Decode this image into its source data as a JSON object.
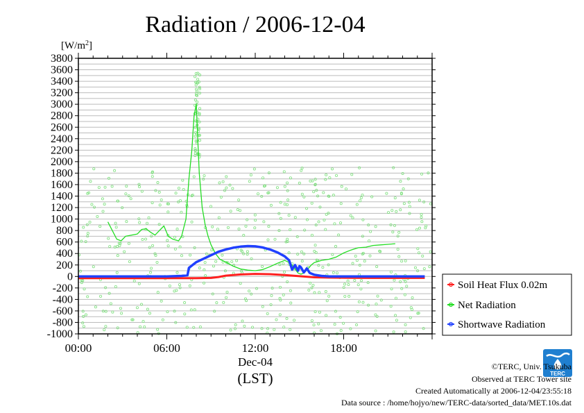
{
  "chart_data": {
    "type": "line",
    "title": "Radiation / 2006-12-04",
    "ylabel": "[W/m",
    "ylabel_sup": "2",
    "ylabel_close": "]",
    "xlabel": "Dec-04",
    "xlabel_sub": "(LST)",
    "ylim": [
      -1000,
      3800
    ],
    "xlim": [
      0,
      24
    ],
    "y_ticks": [
      3800,
      3600,
      3400,
      3200,
      3000,
      2800,
      2600,
      2400,
      2200,
      2000,
      1800,
      1600,
      1400,
      1200,
      1000,
      800,
      600,
      400,
      200,
      0,
      -200,
      -400,
      -600,
      -800,
      -1000
    ],
    "x_ticks": [
      {
        "value": 0,
        "label": "00:00"
      },
      {
        "value": 6,
        "label": "06:00"
      },
      {
        "value": 12,
        "label": "12:00"
      },
      {
        "value": 18,
        "label": "18:00"
      }
    ],
    "grid": true,
    "legend_position": "right",
    "series": [
      {
        "name": "Soil Heat Flux 0.02m",
        "color": "#ff2020",
        "x": [
          0,
          2,
          4,
          6,
          7,
          8,
          9,
          9.5,
          10,
          11,
          12,
          13,
          14,
          15,
          16,
          17,
          18,
          20,
          22,
          23.5
        ],
        "y": [
          -30,
          -30,
          -30,
          -30,
          -30,
          -30,
          -25,
          -10,
          15,
          35,
          45,
          40,
          25,
          5,
          -15,
          -20,
          -22,
          -25,
          -25,
          -25
        ]
      },
      {
        "name": "Net Radiation",
        "color": "#22dd22",
        "x": [
          2.0,
          2.3,
          2.6,
          2.9,
          3.2,
          3.6,
          4.0,
          4.3,
          4.6,
          4.9,
          5.2,
          5.5,
          5.8,
          6.1,
          6.4,
          6.8,
          7.0,
          7.3,
          7.5,
          7.7,
          7.85,
          8.0,
          8.1,
          8.2,
          8.4,
          8.6,
          8.8,
          9.0,
          9.3,
          9.6,
          10.0,
          10.5,
          11.0,
          11.5,
          12.0,
          12.5,
          13.0,
          13.5,
          14.0,
          14.4,
          14.7,
          14.9,
          15.1,
          15.3,
          15.5,
          15.8,
          16.0,
          16.5,
          17.0,
          17.5,
          18.0,
          18.5,
          19.0,
          19.5,
          20.0,
          20.5,
          21.0,
          21.5
        ],
        "y": [
          950,
          800,
          650,
          620,
          700,
          720,
          740,
          820,
          830,
          770,
          720,
          800,
          880,
          700,
          650,
          620,
          700,
          1000,
          1700,
          2200,
          2800,
          3000,
          2400,
          1800,
          1200,
          900,
          700,
          550,
          400,
          300,
          250,
          180,
          130,
          110,
          100,
          120,
          170,
          230,
          280,
          230,
          130,
          60,
          40,
          60,
          110,
          200,
          240,
          280,
          300,
          340,
          410,
          460,
          500,
          510,
          540,
          550,
          560,
          570
        ]
      },
      {
        "name": "Shortwave Radiation",
        "color": "#2040ff",
        "x": [
          0,
          2,
          4,
          6,
          7.0,
          7.4,
          7.5,
          7.8,
          8.0,
          8.5,
          9.0,
          9.5,
          10.0,
          10.5,
          11.0,
          11.5,
          12.0,
          12.5,
          13.0,
          13.5,
          14.0,
          14.3,
          14.5,
          14.7,
          14.9,
          15.0,
          15.1,
          15.3,
          15.5,
          15.7,
          16.0,
          16.5,
          17.0,
          18,
          20,
          22,
          23.5
        ],
        "y": [
          0,
          0,
          0,
          0,
          10,
          20,
          150,
          210,
          250,
          310,
          370,
          430,
          470,
          500,
          520,
          530,
          525,
          505,
          470,
          420,
          350,
          280,
          120,
          200,
          100,
          180,
          160,
          70,
          140,
          60,
          30,
          10,
          0,
          0,
          0,
          0,
          0
        ]
      }
    ]
  },
  "credits": {
    "copyright": "©TERC, Univ. Tsukuba",
    "observed": "Observed at TERC Tower site",
    "created": "Created Automatically at 2006-12-04/23:55:18",
    "source": "Data source : /home/hojyo/new/TERC-data/sorted_data/MET.10s.dat"
  },
  "logo": {
    "text": "TERC",
    "color": "#1f7fd0"
  }
}
